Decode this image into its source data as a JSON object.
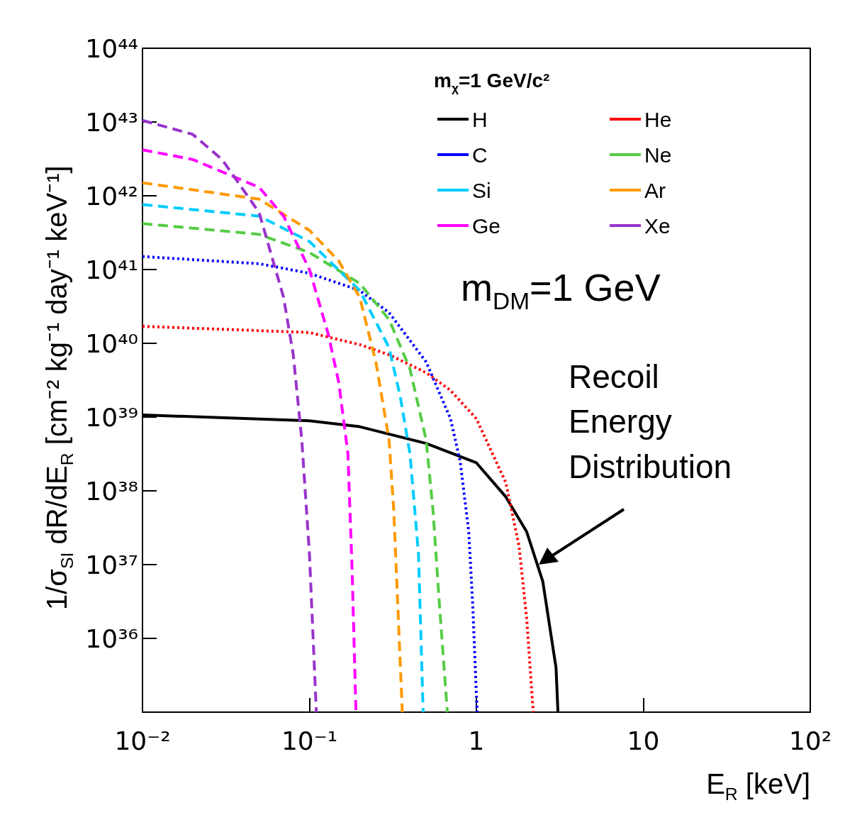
{
  "chart_data": {
    "type": "line",
    "xlabel": "E$_{R}$ [keV]",
    "ylabel": "1/σ$_{SI}$ dR/dE$_{R}$ [cm⁻² kg⁻¹ day⁻¹ keV⁻¹]",
    "legend_title": "m$_{χ}$=1 GeV/c²",
    "log": "xy",
    "grid": false,
    "legend": "top right",
    "marker": "none",
    "xlim": [
      0.01,
      100
    ],
    "xticks": [
      {
        "value": 0.01,
        "label": "10⁻²"
      },
      {
        "value": 0.1,
        "label": "10⁻¹"
      },
      1,
      10,
      {
        "value": 100,
        "label": "10²"
      }
    ],
    "ylim": [
      1e+35,
      1e+44
    ],
    "yticks": [
      {
        "value": 1e+35,
        "label": null
      },
      {
        "value": 1e+36,
        "label": "10³⁶"
      },
      {
        "value": 1e+37,
        "label": "10³⁷"
      },
      {
        "value": 1e+38,
        "label": "10³⁸"
      },
      {
        "value": 1e+39,
        "label": "10³⁹"
      },
      {
        "value": 1e+40,
        "label": "10⁴⁰"
      },
      {
        "value": 1e+41,
        "label": "10⁴¹"
      },
      {
        "value": 1e+42,
        "label": "10⁴²"
      },
      {
        "value": 1e+43,
        "label": "10⁴³"
      },
      {
        "value": 1e+44,
        "label": "10⁴⁴"
      }
    ],
    "annotations": [
      "m$_{DM}$=1 GeV",
      "Recoil\nEnergy\nDistribution"
    ],
    "series": [
      {
        "name": "H",
        "color": "#000000",
        "line_style": "solid",
        "x": [
          0.01,
          0.1,
          0.2,
          0.5,
          1,
          1.5,
          2,
          2.5,
          3,
          3.08
        ],
        "values": [
          1.07e+39,
          8.9e+38,
          7.4e+38,
          4.4e+38,
          2.4e+38,
          8.3e+37,
          2.8e+37,
          5.9e+36,
          4e+35,
          1e+35
        ]
      },
      {
        "name": "He",
        "color": "#ff0000",
        "line_style": "dotted",
        "x": [
          0.01,
          0.1,
          0.2,
          0.3,
          0.5,
          0.7,
          1,
          1.5,
          1.8,
          2,
          2.19
        ],
        "values": [
          1.7e+40,
          1.4e+40,
          9.6e+39,
          7e+39,
          4e+39,
          2.3e+39,
          9.5e+38,
          1.3e+38,
          1.8e+37,
          1.9e+36,
          1e+35
        ]
      },
      {
        "name": "C",
        "color": "#0000ff",
        "line_style": "dotted",
        "x": [
          0.01,
          0.05,
          0.1,
          0.2,
          0.3,
          0.5,
          0.7,
          0.8,
          0.9,
          0.95,
          1.01
        ],
        "values": [
          1.5e+41,
          1.2e+41,
          8.9e+40,
          5.2e+40,
          2.6e+40,
          5.6e+39,
          9.5e+38,
          2.5e+38,
          2.8e+37,
          3e+36,
          1e+35
        ]
      },
      {
        "name": "Ne",
        "color": "#55cc44",
        "line_style": "dashed",
        "x": [
          0.01,
          0.05,
          0.1,
          0.2,
          0.3,
          0.4,
          0.5,
          0.55,
          0.6,
          0.67
        ],
        "values": [
          4.2e+41,
          3e+41,
          1.7e+41,
          6.5e+40,
          2.1e+40,
          4.5e+39,
          4.9e+38,
          5.4e+37,
          3e+36,
          1e+35
        ]
      },
      {
        "name": "Si",
        "color": "#00ccff",
        "line_style": "dashed",
        "x": [
          0.01,
          0.05,
          0.1,
          0.2,
          0.3,
          0.35,
          0.4,
          0.45,
          0.48
        ],
        "values": [
          7.6e+41,
          5.3e+41,
          2.4e+41,
          5.2e+40,
          8.7e+39,
          1.9e+39,
          3.2e+38,
          1.4e+37,
          1e+35
        ]
      },
      {
        "name": "Ar",
        "color": "#ff9900",
        "line_style": "dashed",
        "x": [
          0.01,
          0.05,
          0.1,
          0.15,
          0.2,
          0.25,
          0.3,
          0.32,
          0.36
        ],
        "values": [
          1.5e+42,
          9e+41,
          3.4e+41,
          1.3e+41,
          4.2e+40,
          5.6e+39,
          4.9e+38,
          5.4e+37,
          1e+35
        ]
      },
      {
        "name": "Ge",
        "color": "#ff00ff",
        "line_style": "dashed",
        "x": [
          0.01,
          0.02,
          0.05,
          0.07,
          0.1,
          0.13,
          0.15,
          0.17,
          0.18,
          0.19
        ],
        "values": [
          4.2e+42,
          3.1e+42,
          1.3e+42,
          5.3e+41,
          1e+41,
          1.3e+40,
          2.9e+39,
          3.2e+38,
          9e+36,
          1e+35
        ]
      },
      {
        "name": "Xe",
        "color": "#9933cc",
        "line_style": "dashed",
        "x": [
          0.01,
          0.02,
          0.03,
          0.05,
          0.07,
          0.08,
          0.09,
          0.1,
          0.11
        ],
        "values": [
          1.05e+43,
          6.8e+42,
          3.1e+42,
          5.9e+41,
          4.2e+40,
          7e+39,
          4.9e+38,
          1.4e+37,
          1e+35
        ]
      }
    ]
  }
}
